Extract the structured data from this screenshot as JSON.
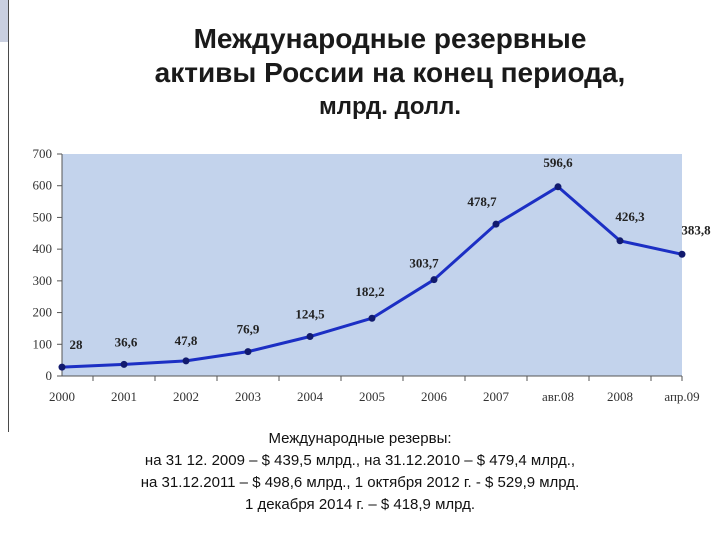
{
  "title": {
    "line1": "Международные резервные",
    "line2": "активы России на конец периода,",
    "line3": "млрд. долл."
  },
  "chart_data": {
    "type": "line",
    "categories": [
      "2000",
      "2001",
      "2002",
      "2003",
      "2004",
      "2005",
      "2006",
      "2007",
      "авг.08",
      "2008",
      "апр.09"
    ],
    "values": [
      28,
      36.6,
      47.8,
      76.9,
      124.5,
      182.2,
      303.7,
      478.7,
      596.6,
      426.3,
      383.8
    ],
    "data_labels": [
      "28",
      "36,6",
      "47,8",
      "76,9",
      "124,5",
      "182,2",
      "303,7",
      "478,7",
      "596,6",
      "426,3",
      "383,8"
    ],
    "ylim": [
      0,
      700
    ],
    "yticks": [
      "0",
      "100",
      "200",
      "300",
      "400",
      "500",
      "600",
      "700"
    ],
    "grid": false,
    "colors": {
      "plot_bg": "#c3d3ec",
      "line": "#1c2fc4"
    }
  },
  "note": {
    "line1": "Международные резервы:",
    "line2": "на 31 12. 2009 – $ 439,5 млрд., на 31.12.2010 – $ 479,4 млрд.,",
    "line3": "на 31.12.2011 – $ 498,6 млрд., 1 октября 2012 г. - $ 529,9 млрд.",
    "line4": "1 декабря 2014 г. – $ 418,9 млрд."
  }
}
